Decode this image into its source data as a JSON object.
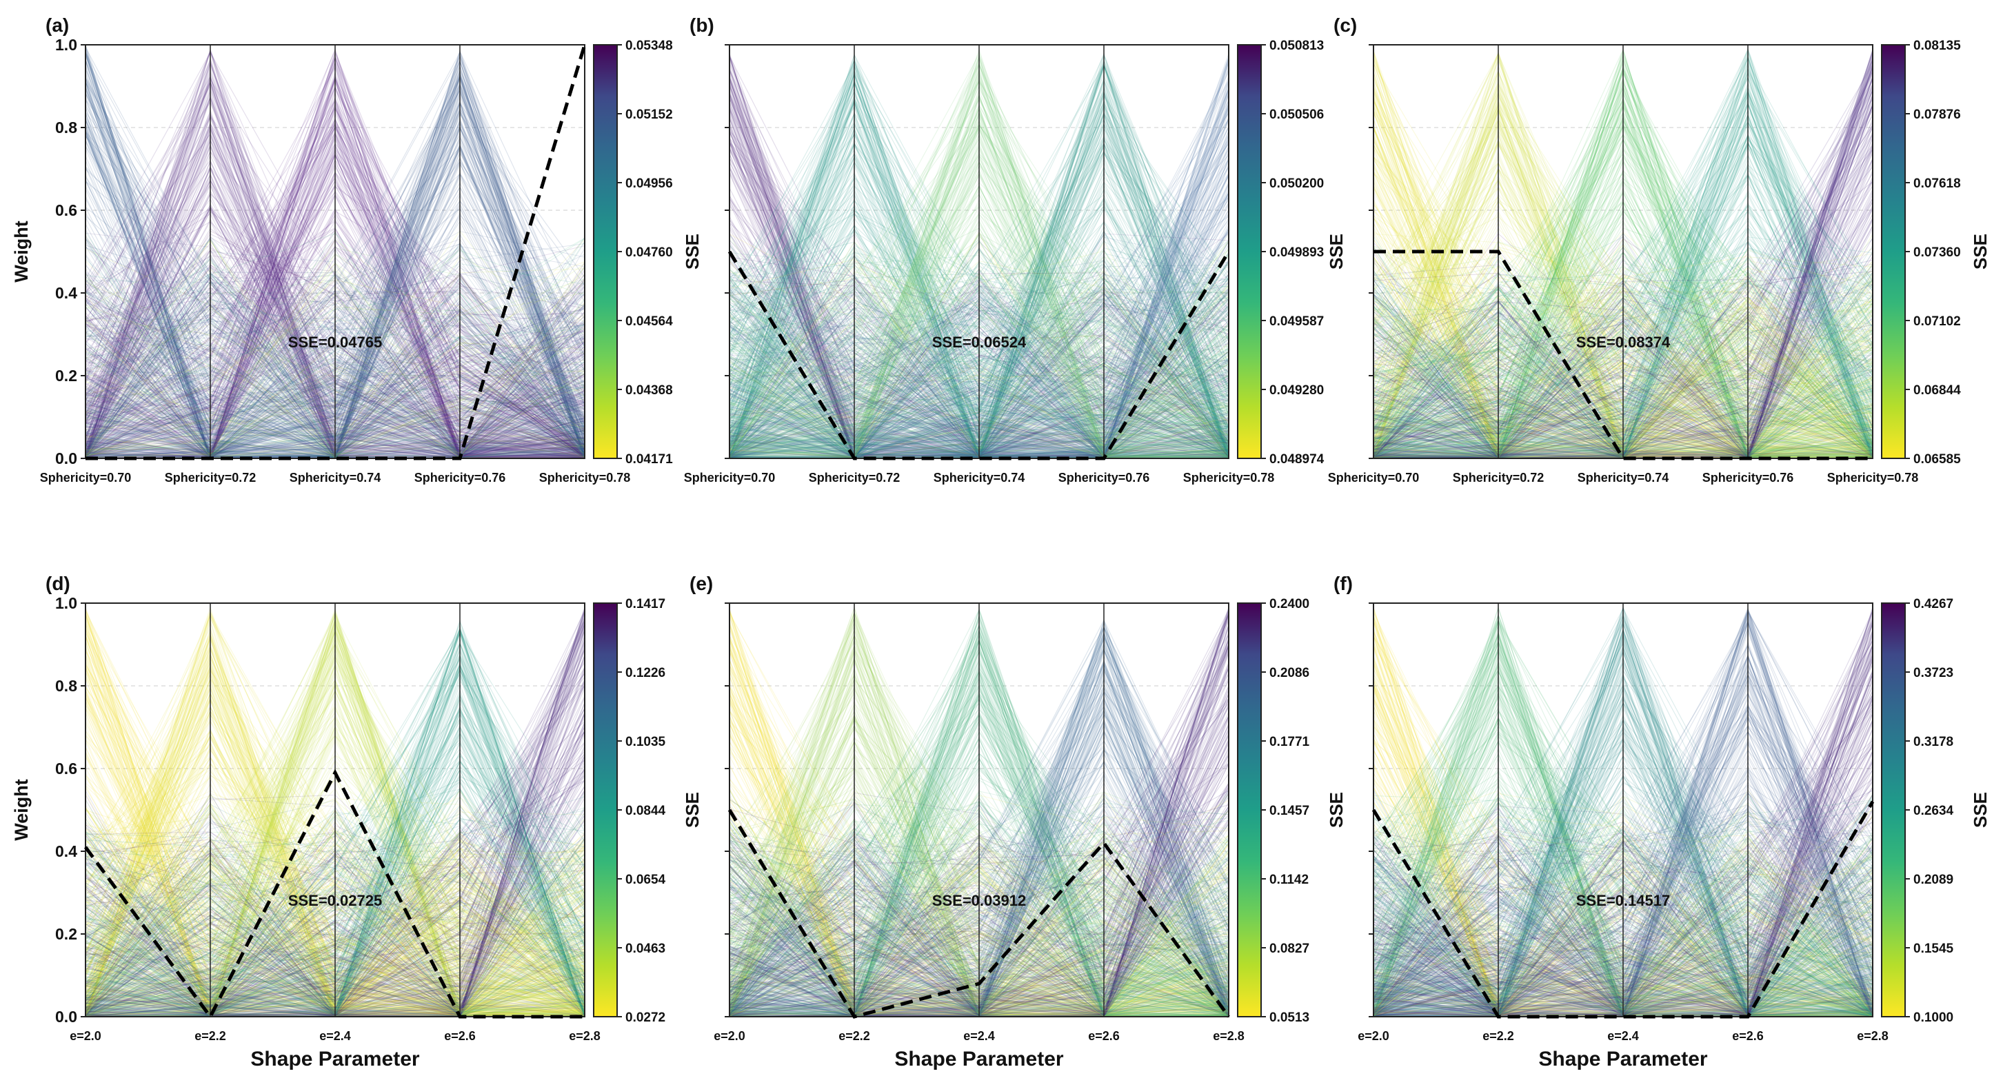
{
  "figure": {
    "panels": [
      {
        "label": "(a)",
        "sse_text": "SSE=0.04765",
        "colorbar_ticks": [
          "0.05348",
          "0.05152",
          "0.04956",
          "0.04760",
          "0.04564",
          "0.04368",
          "0.04171"
        ],
        "colorbar_label": "SSE",
        "colormap": "viridis",
        "x_tick_labels": [
          "Sphericity=0.70",
          "Sphericity=0.72",
          "Sphericity=0.74",
          "Sphericity=0.76",
          "Sphericity=0.78"
        ]
      },
      {
        "label": "(b)",
        "sse_text": "SSE=0.06524",
        "colorbar_ticks": [
          "0.050813",
          "0.050506",
          "0.050200",
          "0.049893",
          "0.049587",
          "0.049280",
          "0.048974"
        ],
        "colorbar_label": "SSE",
        "colormap": "viridis",
        "x_tick_labels": [
          "Sphericity=0.70",
          "Sphericity=0.72",
          "Sphericity=0.74",
          "Sphericity=0.76",
          "Sphericity=0.78"
        ]
      },
      {
        "label": "(c)",
        "sse_text": "SSE=0.08374",
        "colorbar_ticks": [
          "0.08135",
          "0.07876",
          "0.07618",
          "0.07360",
          "0.07102",
          "0.06844",
          "0.06585"
        ],
        "colorbar_label": "SSE",
        "colormap": "viridis",
        "x_tick_labels": [
          "Sphericity=0.70",
          "Sphericity=0.72",
          "Sphericity=0.74",
          "Sphericity=0.76",
          "Sphericity=0.78"
        ]
      },
      {
        "label": "(d)",
        "sse_text": "SSE=0.02725",
        "colorbar_ticks": [
          "0.1417",
          "0.1226",
          "0.1035",
          "0.0844",
          "0.0654",
          "0.0463",
          "0.0272"
        ],
        "colorbar_label": "SSE",
        "colormap": "viridis",
        "x_tick_labels": [
          "e=2.0",
          "e=2.2",
          "e=2.4",
          "e=2.6",
          "e=2.8"
        ],
        "xlabel": "Shape Parameter"
      },
      {
        "label": "(e)",
        "sse_text": "SSE=0.03912",
        "colorbar_ticks": [
          "0.2400",
          "0.2086",
          "0.1771",
          "0.1457",
          "0.1142",
          "0.0827",
          "0.0513"
        ],
        "colorbar_label": "SSE",
        "colormap": "viridis",
        "x_tick_labels": [
          "e=2.0",
          "e=2.2",
          "e=2.4",
          "e=2.6",
          "e=2.8"
        ],
        "xlabel": "Shape Parameter"
      },
      {
        "label": "(f)",
        "sse_text": "SSE=0.14517",
        "colorbar_ticks": [
          "0.4267",
          "0.3723",
          "0.3178",
          "0.2634",
          "0.2089",
          "0.1545",
          "0.1000"
        ],
        "colorbar_label": "SSE",
        "colormap": "viridis",
        "x_tick_labels": [
          "e=2.0",
          "e=2.2",
          "e=2.4",
          "e=2.6",
          "e=2.8"
        ],
        "xlabel": "Shape Parameter"
      }
    ],
    "ylabel": "Weight",
    "y_tick_labels": [
      "0.0",
      "0.2",
      "0.4",
      "0.6",
      "0.8",
      "1.0"
    ],
    "highlight_style": "black dashed line"
  },
  "chart_data": [
    {
      "type": "line",
      "title": "(a)",
      "categories": [
        "Sphericity=0.70",
        "Sphericity=0.72",
        "Sphericity=0.74",
        "Sphericity=0.76",
        "Sphericity=0.78"
      ],
      "ylabel": "Weight",
      "ylim": [
        0,
        1
      ],
      "grid": true,
      "series": [
        {
          "name": "SSE=0.04765",
          "values": [
            0.0,
            0.0,
            0.0,
            0.0,
            1.0
          ]
        }
      ],
      "colorbar": {
        "label": "SSE",
        "min": 0.04171,
        "max": 0.05348
      },
      "background_peaks": {
        "values": [
          1.0,
          0.99,
          0.99,
          0.99,
          0.0
        ],
        "colors": [
          "#3b5d8f",
          "#5c3a8a",
          "#5e2e8a",
          "#3f5b90",
          "#d4dd3a"
        ]
      }
    },
    {
      "type": "line",
      "title": "(b)",
      "categories": [
        "Sphericity=0.70",
        "Sphericity=0.72",
        "Sphericity=0.74",
        "Sphericity=0.76",
        "Sphericity=0.78"
      ],
      "ylabel": "Weight",
      "ylim": [
        0,
        1
      ],
      "grid": true,
      "series": [
        {
          "name": "SSE=0.06524",
          "values": [
            0.5,
            0.0,
            0.0,
            0.0,
            0.5
          ]
        }
      ],
      "colorbar": {
        "label": "SSE",
        "min": 0.048974,
        "max": 0.050813
      },
      "background_peaks": {
        "values": [
          0.98,
          0.98,
          0.99,
          0.98,
          0.98
        ],
        "colors": [
          "#5a2f85",
          "#2f9e8c",
          "#7fd07a",
          "#35998c",
          "#4a6fa0"
        ]
      }
    },
    {
      "type": "line",
      "title": "(c)",
      "categories": [
        "Sphericity=0.70",
        "Sphericity=0.72",
        "Sphericity=0.74",
        "Sphericity=0.76",
        "Sphericity=0.78"
      ],
      "ylabel": "Weight",
      "ylim": [
        0,
        1
      ],
      "grid": true,
      "series": [
        {
          "name": "SSE=0.08374",
          "values": [
            0.5,
            0.5,
            0.0,
            0.0,
            0.0
          ]
        }
      ],
      "colorbar": {
        "label": "SSE",
        "min": 0.06585,
        "max": 0.08135
      },
      "background_peaks": {
        "values": [
          0.99,
          0.99,
          0.99,
          0.99,
          0.99
        ],
        "colors": [
          "#e8e23a",
          "#d2e04a",
          "#5cc46a",
          "#32a08c",
          "#4a2d80"
        ]
      }
    },
    {
      "type": "line",
      "title": "(d)",
      "categories": [
        "e=2.0",
        "e=2.2",
        "e=2.4",
        "e=2.6",
        "e=2.8"
      ],
      "xlabel": "Shape Parameter",
      "ylabel": "Weight",
      "ylim": [
        0,
        1
      ],
      "grid": true,
      "series": [
        {
          "name": "SSE=0.02725",
          "values": [
            0.41,
            0.0,
            0.59,
            0.0,
            0.0
          ]
        }
      ],
      "colorbar": {
        "label": "SSE",
        "min": 0.0272,
        "max": 0.1417
      },
      "background_peaks": {
        "values": [
          0.99,
          0.99,
          0.99,
          0.96,
          0.99
        ],
        "colors": [
          "#f0e23a",
          "#e6e03a",
          "#c6df50",
          "#2c9a8a",
          "#4b2a7c"
        ]
      }
    },
    {
      "type": "line",
      "title": "(e)",
      "categories": [
        "e=2.0",
        "e=2.2",
        "e=2.4",
        "e=2.6",
        "e=2.8"
      ],
      "xlabel": "Shape Parameter",
      "ylabel": "Weight",
      "ylim": [
        0,
        1
      ],
      "grid": true,
      "series": [
        {
          "name": "SSE=0.03912",
          "values": [
            0.5,
            0.0,
            0.08,
            0.42,
            0.0
          ]
        }
      ],
      "colorbar": {
        "label": "SSE",
        "min": 0.0513,
        "max": 0.24
      },
      "background_peaks": {
        "values": [
          0.99,
          0.99,
          0.99,
          0.96,
          0.99
        ],
        "colors": [
          "#f0e23a",
          "#9fd462",
          "#42b07e",
          "#3d6c98",
          "#4a2a7e"
        ]
      }
    },
    {
      "type": "line",
      "title": "(f)",
      "categories": [
        "e=2.0",
        "e=2.2",
        "e=2.4",
        "e=2.6",
        "e=2.8"
      ],
      "xlabel": "Shape Parameter",
      "ylabel": "Weight",
      "ylim": [
        0,
        1
      ],
      "grid": true,
      "series": [
        {
          "name": "SSE=0.14517",
          "values": [
            0.5,
            0.0,
            0.0,
            0.0,
            0.52
          ]
        }
      ],
      "colorbar": {
        "label": "SSE",
        "min": 0.1,
        "max": 0.4267
      },
      "background_peaks": {
        "values": [
          0.99,
          0.99,
          0.99,
          0.99,
          0.99
        ],
        "colors": [
          "#f0e23a",
          "#4fbd74",
          "#2f8f8c",
          "#466394",
          "#4a2a7e"
        ]
      }
    }
  ]
}
